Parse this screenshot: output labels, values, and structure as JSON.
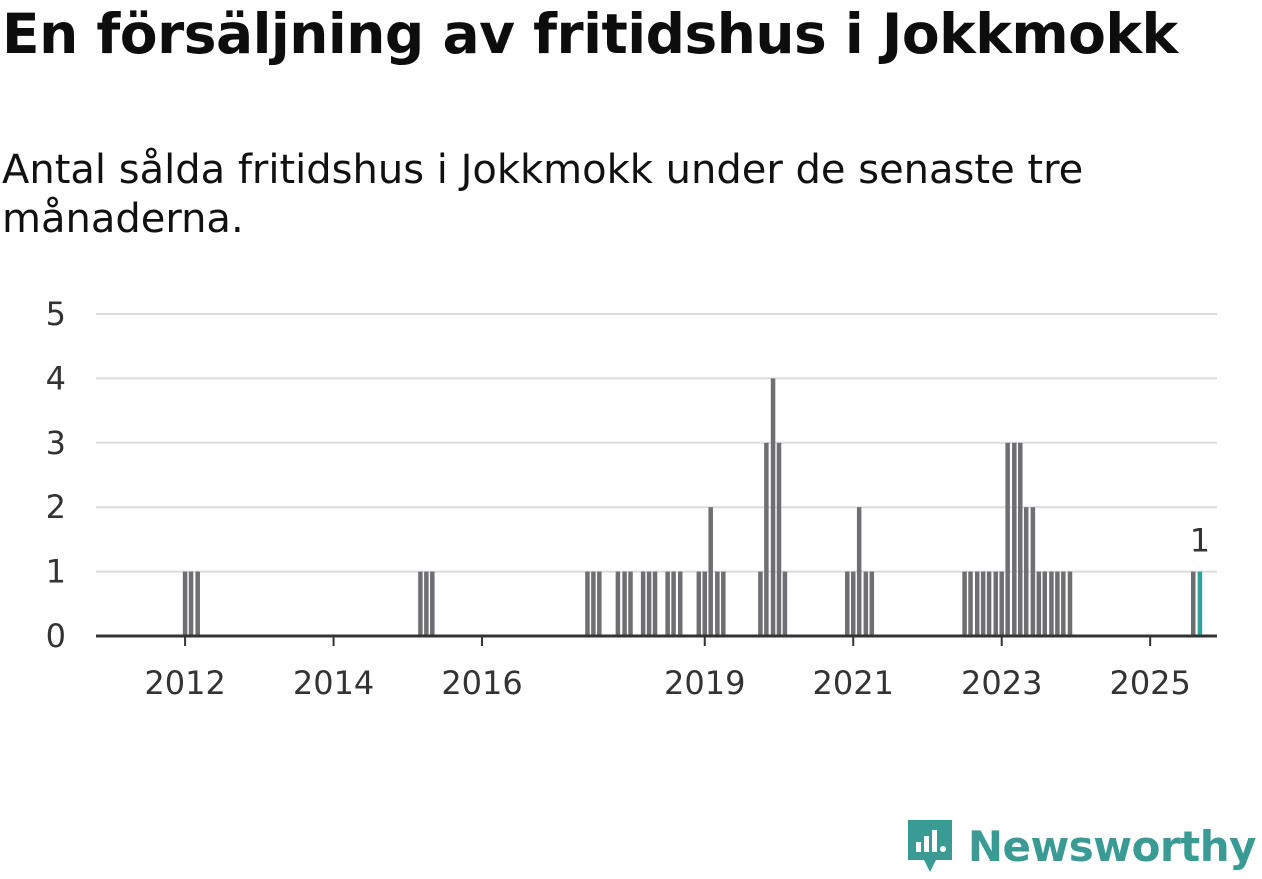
{
  "title": "En försäljning av fritidshus i Jokkmokk",
  "subtitle": "Antal sålda fritidshus i Jokkmokk under de senaste tre månaderna.",
  "brand": {
    "name": "Newsworthy",
    "icon": "newsworthy-logo-icon",
    "color": "#3a9b94"
  },
  "chart_data": {
    "type": "bar",
    "title": "En försäljning av fritidshus i Jokkmokk",
    "subtitle": "Antal sålda fritidshus i Jokkmokk under de senaste tre månaderna.",
    "xlabel": "",
    "ylabel": "",
    "x_range": [
      2010.8,
      2025.9
    ],
    "ylim": [
      0,
      5
    ],
    "y_ticks": [
      0,
      1,
      2,
      3,
      4,
      5
    ],
    "x_ticks": [
      {
        "label": "2012",
        "value": 2012.0
      },
      {
        "label": "2014",
        "value": 2014.0
      },
      {
        "label": "2016",
        "value": 2016.0
      },
      {
        "label": "2019",
        "value": 2019.0
      },
      {
        "label": "2021",
        "value": 2021.0
      },
      {
        "label": "2023",
        "value": 2023.0
      },
      {
        "label": "2025",
        "value": 2025.0
      }
    ],
    "grid": true,
    "bar_color": "#6e6e73",
    "highlight_color": "#2ea39a",
    "annotation": {
      "text": "1",
      "x": 2025.67,
      "y": 1
    },
    "series": [
      {
        "name": "Antal sålda fritidshus",
        "points": [
          {
            "x": 2012.0,
            "y": 1
          },
          {
            "x": 2012.08,
            "y": 1
          },
          {
            "x": 2012.17,
            "y": 1
          },
          {
            "x": 2015.17,
            "y": 1
          },
          {
            "x": 2015.25,
            "y": 1
          },
          {
            "x": 2015.33,
            "y": 1
          },
          {
            "x": 2017.42,
            "y": 1
          },
          {
            "x": 2017.5,
            "y": 1
          },
          {
            "x": 2017.58,
            "y": 1
          },
          {
            "x": 2017.83,
            "y": 1
          },
          {
            "x": 2017.92,
            "y": 1
          },
          {
            "x": 2018.0,
            "y": 1
          },
          {
            "x": 2018.17,
            "y": 1
          },
          {
            "x": 2018.25,
            "y": 1
          },
          {
            "x": 2018.33,
            "y": 1
          },
          {
            "x": 2018.5,
            "y": 1
          },
          {
            "x": 2018.58,
            "y": 1
          },
          {
            "x": 2018.67,
            "y": 1
          },
          {
            "x": 2018.92,
            "y": 1
          },
          {
            "x": 2019.0,
            "y": 1
          },
          {
            "x": 2019.08,
            "y": 2
          },
          {
            "x": 2019.17,
            "y": 1
          },
          {
            "x": 2019.25,
            "y": 1
          },
          {
            "x": 2019.75,
            "y": 1
          },
          {
            "x": 2019.83,
            "y": 3
          },
          {
            "x": 2019.92,
            "y": 4
          },
          {
            "x": 2020.0,
            "y": 3
          },
          {
            "x": 2020.08,
            "y": 1
          },
          {
            "x": 2020.92,
            "y": 1
          },
          {
            "x": 2021.0,
            "y": 1
          },
          {
            "x": 2021.08,
            "y": 2
          },
          {
            "x": 2021.17,
            "y": 1
          },
          {
            "x": 2021.25,
            "y": 1
          },
          {
            "x": 2022.5,
            "y": 1
          },
          {
            "x": 2022.58,
            "y": 1
          },
          {
            "x": 2022.67,
            "y": 1
          },
          {
            "x": 2022.75,
            "y": 1
          },
          {
            "x": 2022.83,
            "y": 1
          },
          {
            "x": 2022.92,
            "y": 1
          },
          {
            "x": 2023.0,
            "y": 1
          },
          {
            "x": 2023.08,
            "y": 3
          },
          {
            "x": 2023.17,
            "y": 3
          },
          {
            "x": 2023.25,
            "y": 3
          },
          {
            "x": 2023.33,
            "y": 2
          },
          {
            "x": 2023.42,
            "y": 2
          },
          {
            "x": 2023.5,
            "y": 1
          },
          {
            "x": 2023.58,
            "y": 1
          },
          {
            "x": 2023.67,
            "y": 1
          },
          {
            "x": 2023.75,
            "y": 1
          },
          {
            "x": 2023.83,
            "y": 1
          },
          {
            "x": 2023.92,
            "y": 1
          },
          {
            "x": 2025.58,
            "y": 1
          },
          {
            "x": 2025.67,
            "y": 1,
            "highlight": true
          }
        ]
      }
    ]
  }
}
